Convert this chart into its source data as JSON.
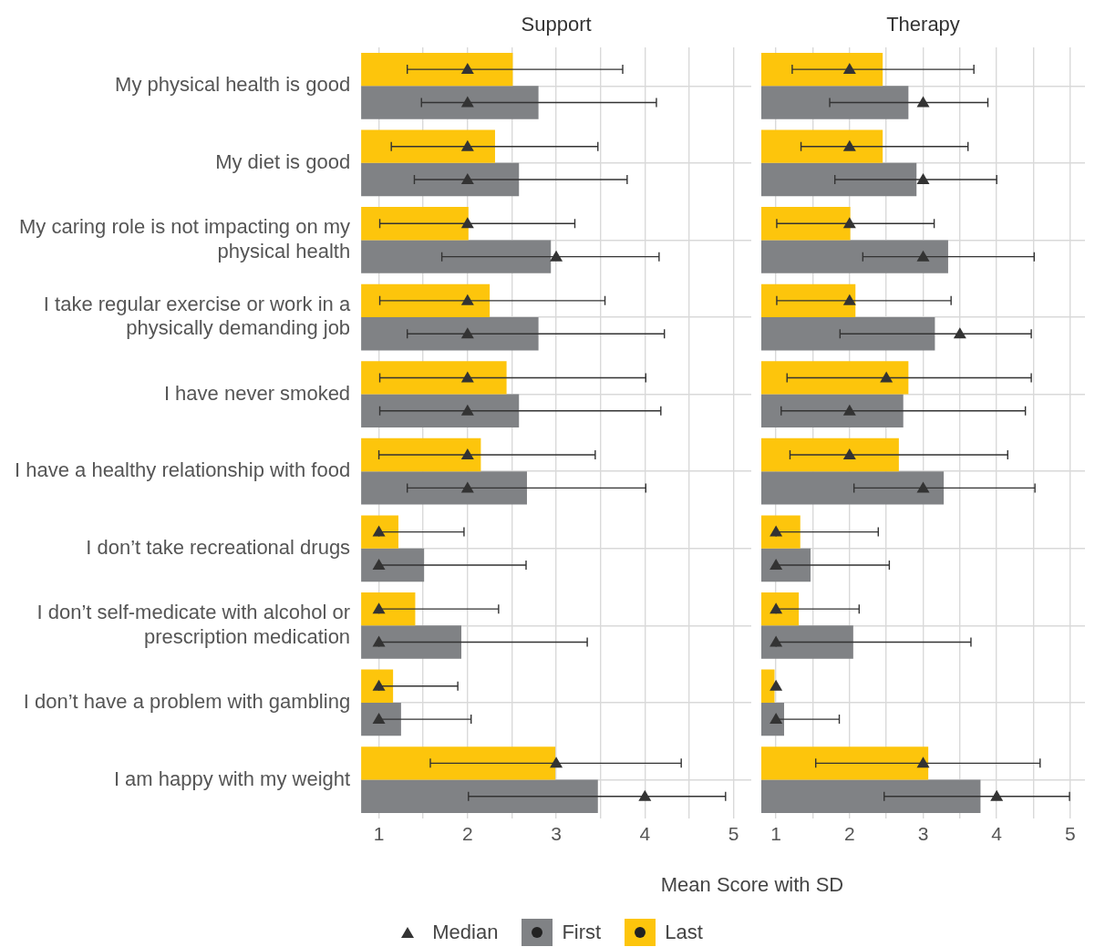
{
  "chart_data": [
    {
      "type": "bar",
      "orientation": "horizontal",
      "title": "Support",
      "xlabel": "Mean Score with SD",
      "legend": "bottom",
      "grid": true,
      "categories": [
        "My physical health is good",
        "My diet is good",
        "My caring role is not impacting on my physical health",
        "I take regular exercise or work in a physically demanding job",
        "I have never smoked",
        "I have a healthy relationship with food",
        "I don’t take recreational drugs",
        "I don’t self-medicate with alcohol or prescription medication",
        "I don’t have a problem with gambling",
        "I am happy with my weight"
      ],
      "xlim": [
        0.8,
        5.2
      ],
      "xticks": [
        1,
        {
          "value": 1.5,
          "label": null
        },
        2,
        {
          "value": 2.5,
          "label": null
        },
        3,
        {
          "value": 3.5,
          "label": null
        },
        4,
        {
          "value": 4.5,
          "label": null
        },
        5
      ],
      "series": [
        {
          "name": "Last",
          "color": "#fdc50c",
          "values": [
            2.51,
            2.31,
            2.01,
            2.25,
            2.44,
            2.15,
            1.22,
            1.41,
            1.16,
            2.99
          ],
          "errors": [
            [
              1.32,
              3.75
            ],
            [
              1.14,
              3.47
            ],
            [
              1.01,
              3.21
            ],
            [
              1.01,
              3.55
            ],
            [
              1.01,
              4.01
            ],
            [
              1.0,
              3.44
            ],
            [
              1.0,
              1.96
            ],
            [
              1.0,
              2.35
            ],
            [
              1.0,
              1.89
            ],
            [
              1.58,
              4.41
            ]
          ]
        },
        {
          "name": "First",
          "color": "#808285",
          "values": [
            2.8,
            2.58,
            2.94,
            2.8,
            2.58,
            2.67,
            1.51,
            1.93,
            1.25,
            3.47
          ],
          "errors": [
            [
              1.48,
              4.13
            ],
            [
              1.4,
              3.8
            ],
            [
              1.71,
              4.16
            ],
            [
              1.32,
              4.22
            ],
            [
              1.01,
              4.18
            ],
            [
              1.32,
              4.01
            ],
            [
              1.0,
              2.66
            ],
            [
              1.0,
              3.35
            ],
            [
              1.0,
              2.04
            ],
            [
              2.01,
              4.91
            ]
          ]
        },
        {
          "name": "Median",
          "type": "scatter",
          "marker": "triangle",
          "color": "#333333",
          "values": [
            2,
            2,
            2,
            2,
            2,
            2,
            1,
            1,
            1,
            3
          ]
        },
        {
          "type": "scatter",
          "marker": "triangle",
          "color": "#333333",
          "values": [
            2,
            2,
            3,
            2,
            2,
            2,
            1,
            1,
            1,
            4
          ]
        }
      ]
    },
    {
      "type": "bar",
      "orientation": "horizontal",
      "title": "Therapy",
      "grid": true,
      "tick_labels": "x",
      "xlim": [
        0.8,
        5.2
      ],
      "xticks": [
        1,
        {
          "value": 1.5,
          "label": null
        },
        2,
        {
          "value": 2.5,
          "label": null
        },
        3,
        {
          "value": 3.5,
          "label": null
        },
        4,
        {
          "value": 4.5,
          "label": null
        },
        5
      ],
      "series": [
        {
          "color": "#fdc50c",
          "values": [
            2.45,
            2.45,
            2.01,
            2.08,
            2.8,
            2.67,
            1.33,
            1.31,
            0.98,
            3.07
          ],
          "errors": [
            [
              1.22,
              3.69
            ],
            [
              1.34,
              3.61
            ],
            [
              1.01,
              3.15
            ],
            [
              1.01,
              3.38
            ],
            [
              1.15,
              4.47
            ],
            [
              1.19,
              4.15
            ],
            [
              1.0,
              2.39
            ],
            [
              1.0,
              2.13
            ],
            null,
            [
              1.54,
              4.59
            ]
          ]
        },
        {
          "color": "#808285",
          "values": [
            2.8,
            2.91,
            3.34,
            3.16,
            2.73,
            3.28,
            1.47,
            2.05,
            1.11,
            3.78
          ],
          "errors": [
            [
              1.73,
              3.88
            ],
            [
              1.8,
              4.0
            ],
            [
              2.18,
              4.51
            ],
            [
              1.87,
              4.47
            ],
            [
              1.07,
              4.39
            ],
            [
              2.06,
              4.52
            ],
            [
              1.0,
              2.54
            ],
            [
              1.0,
              3.65
            ],
            [
              1.0,
              1.86
            ],
            [
              2.47,
              4.99
            ]
          ]
        },
        {
          "type": "scatter",
          "marker": "triangle",
          "color": "#333333",
          "values": [
            2,
            2,
            2,
            2,
            2.5,
            2,
            1,
            1,
            1,
            3
          ]
        },
        {
          "type": "scatter",
          "marker": "triangle",
          "color": "#333333",
          "values": [
            3,
            3,
            3,
            3.5,
            2,
            3,
            1,
            1,
            1,
            4
          ]
        }
      ]
    }
  ]
}
